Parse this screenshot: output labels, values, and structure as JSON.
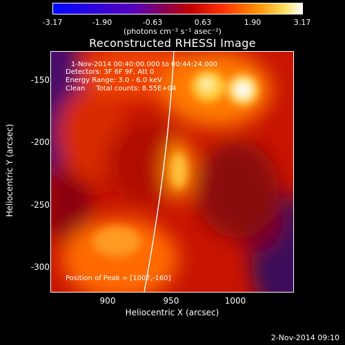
{
  "colorbar": {
    "ticks": [
      "-3.17",
      "-1.90",
      "-0.63",
      "0.63",
      "1.90",
      "3.17"
    ],
    "units_text": "(photons cm⁻² s⁻¹ asec⁻²)"
  },
  "title": "Reconstructed RHESSI Image",
  "annotations": {
    "time_range": "1-Nov-2014 00:40:00.000 to 00:44:24.000",
    "detectors": "Detectors: 3F 6F 9F, Att 0",
    "energy_range": "Energy Range: 3.0 - 6.0 keV",
    "clean_counts": "Clean     Total counts: 8.55E+04",
    "peak": "Position of Peak = [1007,-160]"
  },
  "axes": {
    "xlabel": "Heliocentric X (arcsec)",
    "ylabel": "Heliocentric Y (arcsec)",
    "xticks": [
      "900",
      "950",
      "1000"
    ],
    "yticks": [
      "-150",
      "-200",
      "-250",
      "-300"
    ]
  },
  "footer": {
    "date": "2-Nov-2014 09:10"
  }
}
